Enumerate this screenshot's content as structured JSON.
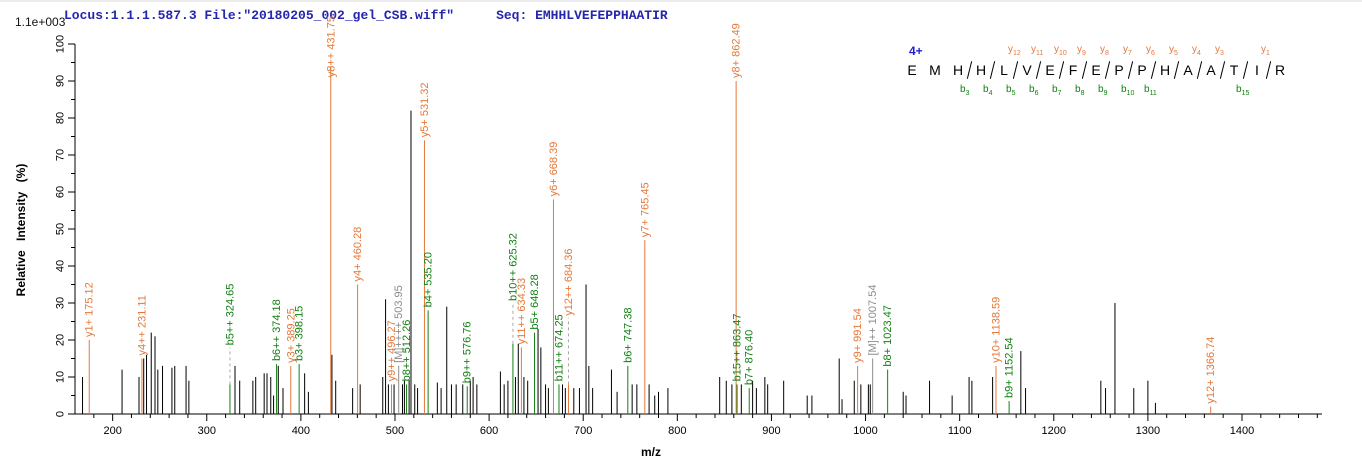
{
  "title": {
    "locus_file": "Locus:1.1.1.587.3 File:\"20180205_002_gel_CSB.wiff\"",
    "seq": "Seq: EMHHLVEFEPPHAATIR"
  },
  "y_axis": {
    "title": "Relative  Intensity (%)",
    "scale_note": "1.1e+003",
    "min": 0,
    "max": 100,
    "major_step": 10,
    "minor_step": 5
  },
  "x_axis": {
    "title": "m/z",
    "min": 160,
    "max": 1485,
    "major_step": 100,
    "minor_step": 20,
    "first_label": 200,
    "last_label": 1400
  },
  "sequence": {
    "charge": "4+",
    "residues": [
      "E",
      "M",
      "H",
      "H",
      "L",
      "V",
      "E",
      "F",
      "E",
      "P",
      "P",
      "H",
      "A",
      "A",
      "T",
      "I",
      "R"
    ],
    "y_ions": [
      {
        "n": 12,
        "g": 5
      },
      {
        "n": 11,
        "g": 6
      },
      {
        "n": 10,
        "g": 7
      },
      {
        "n": 9,
        "g": 8
      },
      {
        "n": 8,
        "g": 9
      },
      {
        "n": 7,
        "g": 10
      },
      {
        "n": 6,
        "g": 11
      },
      {
        "n": 5,
        "g": 12
      },
      {
        "n": 4,
        "g": 13
      },
      {
        "n": 3,
        "g": 14
      },
      {
        "n": 1,
        "g": 16
      }
    ],
    "b_ions": [
      {
        "n": 3,
        "g": 3
      },
      {
        "n": 4,
        "g": 4
      },
      {
        "n": 5,
        "g": 5
      },
      {
        "n": 6,
        "g": 6
      },
      {
        "n": 7,
        "g": 7
      },
      {
        "n": 8,
        "g": 8
      },
      {
        "n": 9,
        "g": 9
      },
      {
        "n": 10,
        "g": 10
      },
      {
        "n": 11,
        "g": 11
      },
      {
        "n": 15,
        "g": 15
      }
    ]
  },
  "colors": {
    "y_ion": "#e4793a",
    "b_ion": "#128012",
    "precursor": "#8c8c8c",
    "peak": "#000000",
    "title_blue": "#2525ad",
    "leader": "#aaaaaa"
  },
  "chart_data": {
    "type": "bar",
    "title": "MS/MS fragment spectrum of EMHHLVEFEPPHAATIR (4+)",
    "xlabel": "m/z",
    "ylabel": "Relative Intensity (%)",
    "xlim": [
      160,
      1485
    ],
    "ylim": [
      0,
      100
    ],
    "grid": false,
    "annotated_peaks": [
      {
        "mz": 175.12,
        "label": "y1+ 175.12",
        "ion": "y",
        "h": 20
      },
      {
        "mz": 231.11,
        "label": "y4++ 231.11",
        "ion": "y",
        "h": 15
      },
      {
        "mz": 324.65,
        "label": "b5++ 324.65",
        "ion": "b",
        "h": 8,
        "lab": 18
      },
      {
        "mz": 374.18,
        "label": "b6++ 374.18",
        "ion": "b",
        "h": 13.5
      },
      {
        "mz": 389.25,
        "label": "y3+ 389.25",
        "ion": "y",
        "h": 13
      },
      {
        "mz": 398.15,
        "label": "b3+ 398.15",
        "ion": "b",
        "h": 13.5
      },
      {
        "mz": 431.75,
        "label": "y8++ 431.75",
        "ion": "y",
        "h": 94
      },
      {
        "mz": 460.28,
        "label": "y4+ 460.28",
        "ion": "y",
        "h": 35
      },
      {
        "mz": 496.27,
        "label": "y9++ 496.27",
        "ion": "y",
        "h": 8
      },
      {
        "mz": 503.95,
        "label": "[M]++++ 503.95",
        "ion": "M",
        "h": 13
      },
      {
        "mz": 512.26,
        "label": "b8++ 512.26",
        "ion": "b",
        "h": 8
      },
      {
        "mz": 531.32,
        "label": "y5+ 531.32",
        "ion": "y",
        "h": 74
      },
      {
        "mz": 535.2,
        "label": "b4+ 535.20",
        "ion": "b",
        "h": 28
      },
      {
        "mz": 576.76,
        "label": "b9++ 576.76",
        "ion": "b",
        "h": 7.5
      },
      {
        "mz": 625.32,
        "label": "b10++ 625.32",
        "ion": "b",
        "h": 19,
        "lab": 30
      },
      {
        "mz": 634.33,
        "label": "y11++ 634.33",
        "ion": "y",
        "h": 18
      },
      {
        "mz": 648.28,
        "label": "b5+ 648.28",
        "ion": "b",
        "h": 22
      },
      {
        "mz": 668.39,
        "label": "y6+ 668.39",
        "ion": "y",
        "h": 58
      },
      {
        "mz": 674.25,
        "label": "b11++ 674.25",
        "ion": "b",
        "h": 8
      },
      {
        "mz": 684.36,
        "label": "y12++ 684.36",
        "ion": "y",
        "h": 8,
        "lab": 26
      },
      {
        "mz": 747.38,
        "label": "b6+ 747.38",
        "ion": "b",
        "h": 13
      },
      {
        "mz": 765.45,
        "label": "y7+ 765.45",
        "ion": "y",
        "h": 47
      },
      {
        "mz": 862.49,
        "label": "y8+ 862.49",
        "ion": "y",
        "h": 90
      },
      {
        "mz": 863.47,
        "label": "b15++ 863.47",
        "ion": "b",
        "h": 8
      },
      {
        "mz": 876.4,
        "label": "b7+ 876.40",
        "ion": "b",
        "h": 7
      },
      {
        "mz": 991.54,
        "label": "y9+ 991.54",
        "ion": "y",
        "h": 13
      },
      {
        "mz": 1007.54,
        "label": "[M]++ 1007.54",
        "ion": "M",
        "h": 15
      },
      {
        "mz": 1023.47,
        "label": "b8+ 1023.47",
        "ion": "b",
        "h": 12
      },
      {
        "mz": 1138.59,
        "label": "y10+ 1138.59",
        "ion": "y",
        "h": 13
      },
      {
        "mz": 1152.54,
        "label": "b9+ 1152.54",
        "ion": "b",
        "h": 3.5
      },
      {
        "mz": 1366.74,
        "label": "y12+ 1366.74",
        "ion": "y",
        "h": 2
      }
    ],
    "peaks": [
      [
        168,
        10
      ],
      [
        210,
        12
      ],
      [
        228,
        10
      ],
      [
        233,
        15
      ],
      [
        236,
        16
      ],
      [
        241,
        22
      ],
      [
        245,
        21
      ],
      [
        248,
        12
      ],
      [
        253,
        13
      ],
      [
        263,
        12.5
      ],
      [
        266,
        13
      ],
      [
        278,
        13
      ],
      [
        281,
        9
      ],
      [
        330,
        13
      ],
      [
        335,
        9
      ],
      [
        349,
        9
      ],
      [
        352,
        10
      ],
      [
        361,
        11
      ],
      [
        364,
        11
      ],
      [
        368,
        10
      ],
      [
        371,
        5
      ],
      [
        376,
        13
      ],
      [
        381,
        7
      ],
      [
        404,
        11
      ],
      [
        408,
        6
      ],
      [
        433,
        16
      ],
      [
        437,
        9
      ],
      [
        455,
        7
      ],
      [
        463,
        8
      ],
      [
        487,
        10
      ],
      [
        490,
        31
      ],
      [
        493,
        8
      ],
      [
        499,
        8
      ],
      [
        508,
        8
      ],
      [
        510,
        9
      ],
      [
        515,
        9
      ],
      [
        517,
        82
      ],
      [
        521,
        8
      ],
      [
        524,
        7
      ],
      [
        545,
        8.5
      ],
      [
        549,
        7
      ],
      [
        555,
        29
      ],
      [
        560,
        8
      ],
      [
        565,
        8
      ],
      [
        572,
        8
      ],
      [
        580,
        9
      ],
      [
        583,
        10
      ],
      [
        587,
        8
      ],
      [
        612,
        11.5
      ],
      [
        616,
        8
      ],
      [
        620,
        9
      ],
      [
        628,
        10
      ],
      [
        631,
        19
      ],
      [
        637,
        10
      ],
      [
        641,
        9
      ],
      [
        652,
        23
      ],
      [
        655,
        18
      ],
      [
        660,
        8
      ],
      [
        663,
        7
      ],
      [
        678,
        8
      ],
      [
        681,
        7
      ],
      [
        690,
        7
      ],
      [
        696,
        7
      ],
      [
        703,
        35
      ],
      [
        706,
        13
      ],
      [
        710,
        7
      ],
      [
        730,
        12
      ],
      [
        736,
        6
      ],
      [
        752,
        8
      ],
      [
        757,
        8
      ],
      [
        770,
        8
      ],
      [
        776,
        5
      ],
      [
        780,
        6
      ],
      [
        790,
        7
      ],
      [
        845,
        10
      ],
      [
        852,
        9
      ],
      [
        858,
        8
      ],
      [
        868,
        8
      ],
      [
        880,
        9
      ],
      [
        884,
        7
      ],
      [
        893,
        10
      ],
      [
        896,
        8
      ],
      [
        913,
        9
      ],
      [
        938,
        5
      ],
      [
        943,
        5
      ],
      [
        972,
        15
      ],
      [
        975,
        4
      ],
      [
        988,
        9
      ],
      [
        995,
        8
      ],
      [
        1003,
        8
      ],
      [
        1005,
        8
      ],
      [
        1040,
        6
      ],
      [
        1043,
        5
      ],
      [
        1068,
        9
      ],
      [
        1092,
        5
      ],
      [
        1110,
        10
      ],
      [
        1113,
        9
      ],
      [
        1135,
        10
      ],
      [
        1165,
        17
      ],
      [
        1170,
        7
      ],
      [
        1250,
        9
      ],
      [
        1255,
        7
      ],
      [
        1265,
        30
      ],
      [
        1285,
        7
      ],
      [
        1300,
        9
      ],
      [
        1308,
        3
      ]
    ]
  }
}
